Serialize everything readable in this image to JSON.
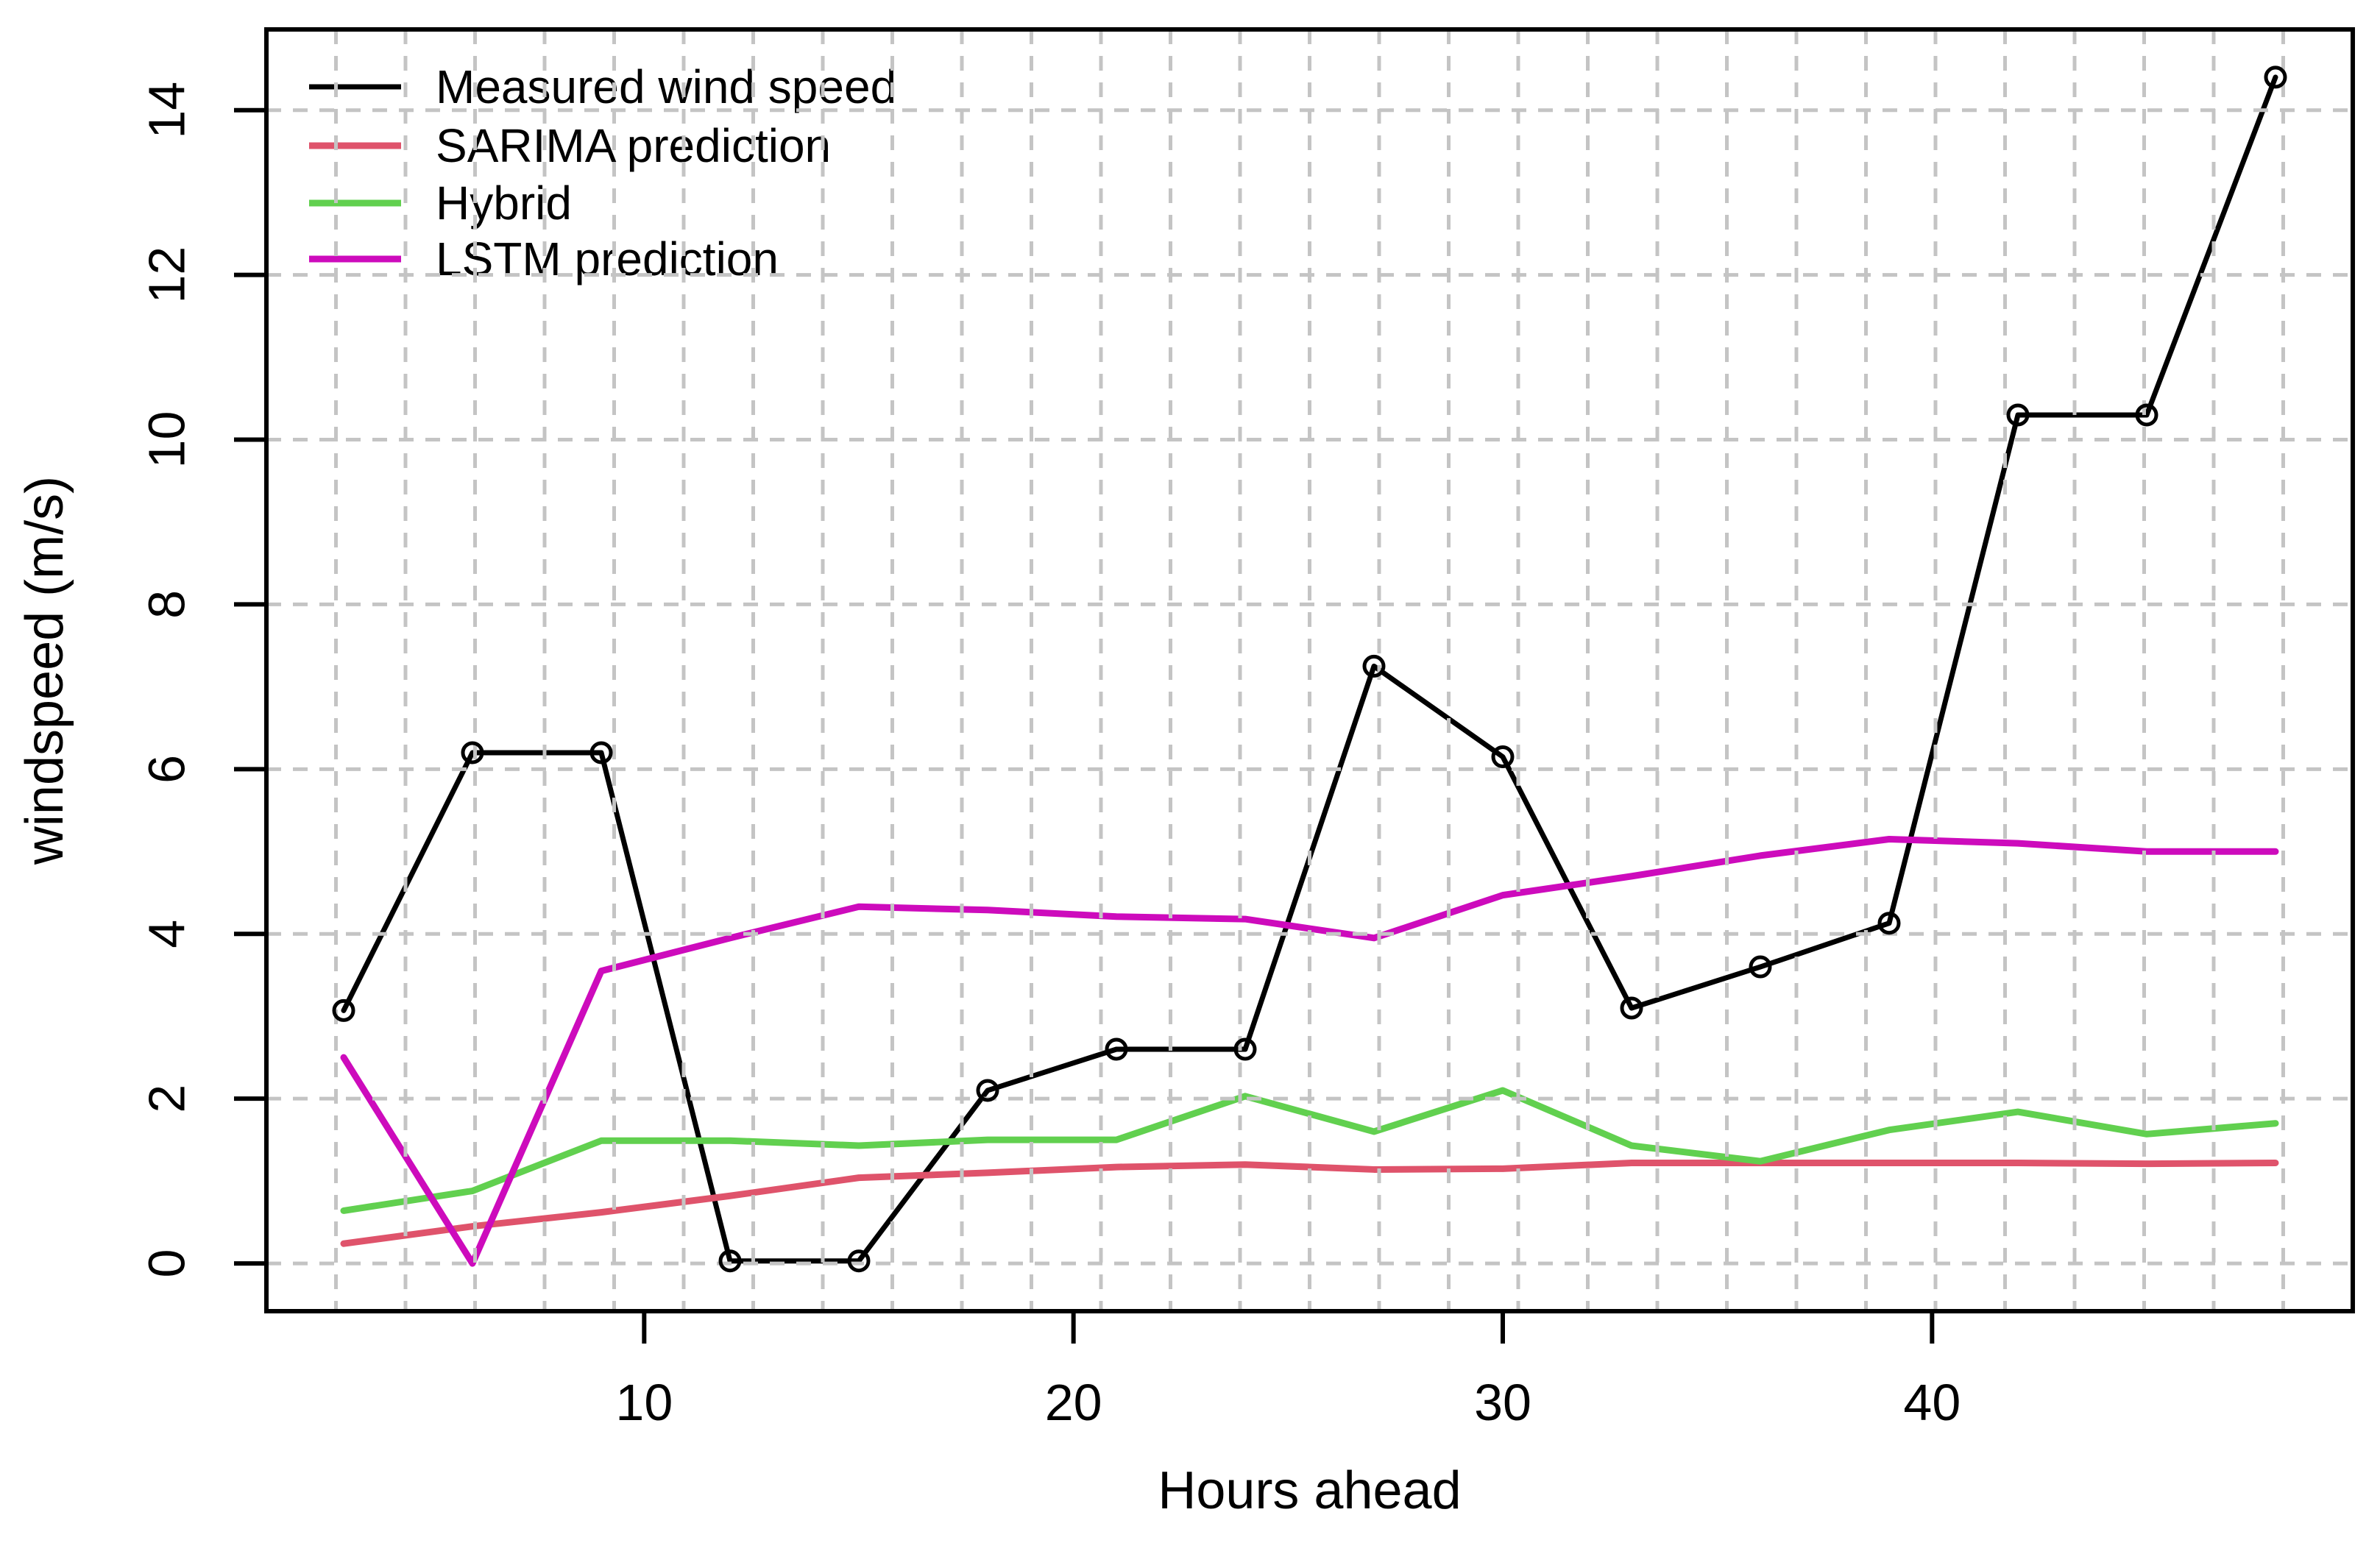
{
  "chart_data": {
    "type": "line",
    "title": "",
    "xlabel": "Hours ahead",
    "ylabel": "windspeed (m/s)",
    "x": [
      3,
      6,
      9,
      12,
      15,
      18,
      21,
      24,
      27,
      30,
      33,
      36,
      39,
      42,
      45,
      48
    ],
    "series": [
      {
        "name": "Measured wind speed",
        "color": "#000000",
        "marker": "circle",
        "line_width": 7,
        "values": [
          3.07,
          6.2,
          6.2,
          0.03,
          0.03,
          2.1,
          2.6,
          2.6,
          7.25,
          6.15,
          3.1,
          3.6,
          4.13,
          10.3,
          10.3,
          14.4
        ]
      },
      {
        "name": "SARIMA prediction",
        "color": "#DF536B",
        "marker": "none",
        "line_width": 9,
        "values": [
          0.24,
          0.45,
          0.62,
          0.82,
          1.04,
          1.1,
          1.17,
          1.2,
          1.14,
          1.15,
          1.22,
          1.22,
          1.22,
          1.22,
          1.21,
          1.22
        ]
      },
      {
        "name": "Hybrid",
        "color": "#61D04F",
        "marker": "none",
        "line_width": 9,
        "values": [
          0.64,
          0.88,
          1.49,
          1.49,
          1.43,
          1.5,
          1.5,
          2.03,
          1.6,
          2.1,
          1.43,
          1.24,
          1.62,
          1.84,
          1.57,
          1.7
        ]
      },
      {
        "name": "LSTM prediction",
        "color": "#CD0BBC",
        "marker": "none",
        "line_width": 9,
        "values": [
          2.5,
          0.0,
          3.55,
          3.95,
          4.33,
          4.29,
          4.21,
          4.18,
          3.95,
          4.47,
          4.7,
          4.95,
          5.15,
          5.1,
          5.0,
          5.0
        ]
      }
    ],
    "xlim": [
      1.2,
      49.8
    ],
    "ylim": [
      -0.58,
      14.98
    ],
    "xticks": [
      10,
      20,
      30,
      40
    ],
    "yticks": [
      0,
      2,
      4,
      6,
      8,
      10,
      12,
      14
    ],
    "grid": {
      "color": "#c4c4c4",
      "vertical_divisions": 30,
      "horizontal_at_yticks": true,
      "dash": [
        20,
        16
      ]
    },
    "legend": {
      "position": "top-left",
      "entries": [
        "Measured wind speed",
        "SARIMA prediction",
        "Hybrid",
        "LSTM prediction"
      ]
    }
  }
}
